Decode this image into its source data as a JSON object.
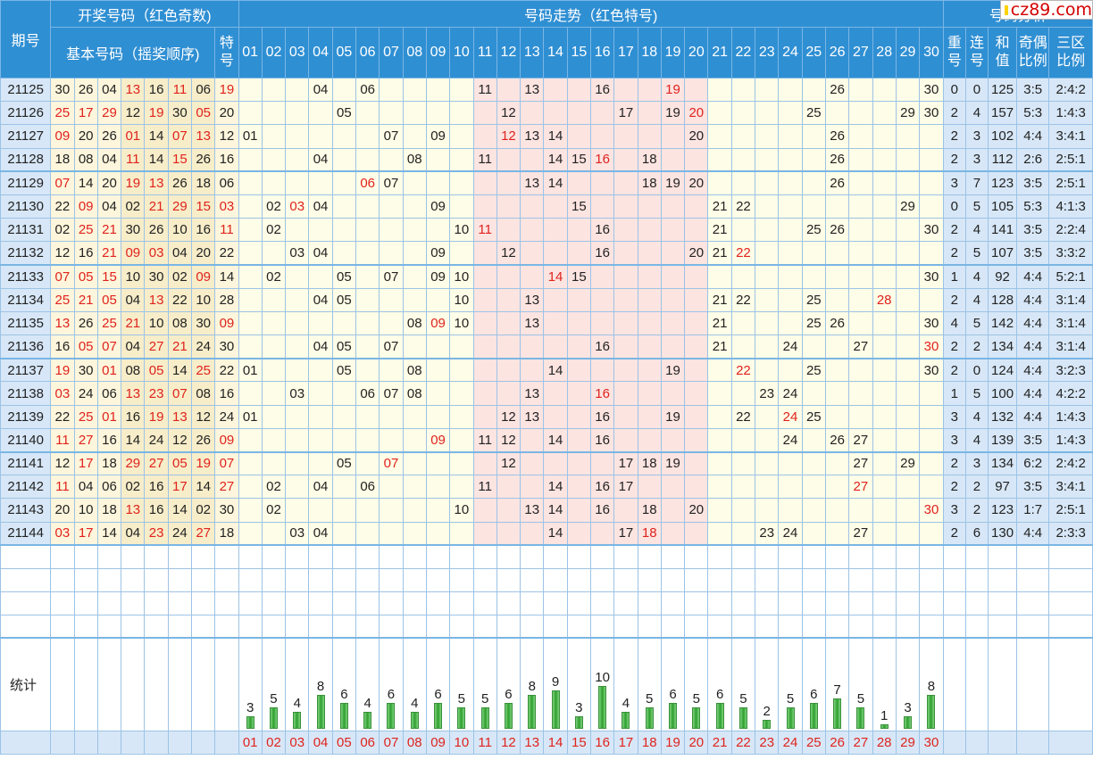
{
  "logo_text": "cz89.com",
  "header": {
    "issue": "期号",
    "draw": "开奖号码（红色奇数)",
    "base": "基本号码（摇奖顺序)",
    "special": "特号",
    "trend": "号码走势（红色特号)",
    "analysis": "号码分析",
    "repeat": "重号",
    "consec": "连号",
    "sum": "和值",
    "oddeven": "奇偶比例",
    "zone": "三区比例"
  },
  "stat_label": "统计",
  "chart_data": {
    "type": "bar",
    "title": "",
    "categories": [
      "01",
      "02",
      "03",
      "04",
      "05",
      "06",
      "07",
      "08",
      "09",
      "10",
      "11",
      "12",
      "13",
      "14",
      "15",
      "16",
      "17",
      "18",
      "19",
      "20",
      "21",
      "22",
      "23",
      "24",
      "25",
      "26",
      "27",
      "28",
      "29",
      "30"
    ],
    "values": [
      3,
      5,
      4,
      8,
      6,
      4,
      6,
      4,
      6,
      5,
      5,
      6,
      8,
      9,
      3,
      10,
      4,
      5,
      6,
      5,
      6,
      5,
      2,
      5,
      6,
      7,
      5,
      1,
      3,
      8
    ]
  },
  "rows": [
    {
      "issue": "21125",
      "base": [
        "30",
        "26",
        "04",
        "13",
        "16",
        "11",
        "06"
      ],
      "sp": "19",
      "trend": [
        "04",
        "06",
        "11",
        "13",
        "16",
        "19",
        "26",
        "30"
      ],
      "rep": "0",
      "con": "0",
      "sum": "125",
      "oe": "3:5",
      "zone": "2:4:2"
    },
    {
      "issue": "21126",
      "base": [
        "25",
        "17",
        "29",
        "12",
        "19",
        "30",
        "05"
      ],
      "sp": "20",
      "trend": [
        "05",
        "12",
        "17",
        "19",
        "20",
        "25",
        "29",
        "30"
      ],
      "rep": "2",
      "con": "4",
      "sum": "157",
      "oe": "5:3",
      "zone": "1:4:3"
    },
    {
      "issue": "21127",
      "base": [
        "09",
        "20",
        "26",
        "01",
        "14",
        "07",
        "13"
      ],
      "sp": "12",
      "trend": [
        "01",
        "07",
        "09",
        "12",
        "13",
        "14",
        "20",
        "26"
      ],
      "rep": "2",
      "con": "3",
      "sum": "102",
      "oe": "4:4",
      "zone": "3:4:1"
    },
    {
      "issue": "21128",
      "base": [
        "18",
        "08",
        "04",
        "11",
        "14",
        "15",
        "26"
      ],
      "sp": "16",
      "trend": [
        "04",
        "08",
        "11",
        "14",
        "15",
        "16",
        "18",
        "26"
      ],
      "rep": "2",
      "con": "3",
      "sum": "112",
      "oe": "2:6",
      "zone": "2:5:1"
    },
    {
      "issue": "21129",
      "base": [
        "07",
        "14",
        "20",
        "19",
        "13",
        "26",
        "18"
      ],
      "sp": "06",
      "trend": [
        "06",
        "07",
        "13",
        "14",
        "18",
        "19",
        "20",
        "26"
      ],
      "rep": "3",
      "con": "7",
      "sum": "123",
      "oe": "3:5",
      "zone": "2:5:1"
    },
    {
      "issue": "21130",
      "base": [
        "22",
        "09",
        "04",
        "02",
        "21",
        "29",
        "15"
      ],
      "sp": "03",
      "trend": [
        "02",
        "03",
        "04",
        "09",
        "15",
        "21",
        "22",
        "29"
      ],
      "rep": "0",
      "con": "5",
      "sum": "105",
      "oe": "5:3",
      "zone": "4:1:3"
    },
    {
      "issue": "21131",
      "base": [
        "02",
        "25",
        "21",
        "30",
        "26",
        "10",
        "16"
      ],
      "sp": "11",
      "trend": [
        "02",
        "10",
        "11",
        "16",
        "21",
        "25",
        "26",
        "30"
      ],
      "rep": "2",
      "con": "4",
      "sum": "141",
      "oe": "3:5",
      "zone": "2:2:4"
    },
    {
      "issue": "21132",
      "base": [
        "12",
        "16",
        "21",
        "09",
        "03",
        "04",
        "20"
      ],
      "sp": "22",
      "trend": [
        "03",
        "04",
        "09",
        "12",
        "16",
        "20",
        "21",
        "22"
      ],
      "rep": "2",
      "con": "5",
      "sum": "107",
      "oe": "3:5",
      "zone": "3:3:2"
    },
    {
      "issue": "21133",
      "base": [
        "07",
        "05",
        "15",
        "10",
        "30",
        "02",
        "09"
      ],
      "sp": "14",
      "trend": [
        "02",
        "05",
        "07",
        "09",
        "10",
        "14",
        "15",
        "30"
      ],
      "rep": "1",
      "con": "4",
      "sum": "92",
      "oe": "4:4",
      "zone": "5:2:1"
    },
    {
      "issue": "21134",
      "base": [
        "25",
        "21",
        "05",
        "04",
        "13",
        "22",
        "10"
      ],
      "sp": "28",
      "trend": [
        "04",
        "05",
        "10",
        "13",
        "21",
        "22",
        "25",
        "28"
      ],
      "rep": "2",
      "con": "4",
      "sum": "128",
      "oe": "4:4",
      "zone": "3:1:4"
    },
    {
      "issue": "21135",
      "base": [
        "13",
        "26",
        "25",
        "21",
        "10",
        "08",
        "30"
      ],
      "sp": "09",
      "trend": [
        "08",
        "09",
        "10",
        "13",
        "21",
        "25",
        "26",
        "30"
      ],
      "rep": "4",
      "con": "5",
      "sum": "142",
      "oe": "4:4",
      "zone": "3:1:4"
    },
    {
      "issue": "21136",
      "base": [
        "16",
        "05",
        "07",
        "04",
        "27",
        "21",
        "24"
      ],
      "sp": "30",
      "trend": [
        "04",
        "05",
        "07",
        "16",
        "21",
        "24",
        "27",
        "30"
      ],
      "rep": "2",
      "con": "2",
      "sum": "134",
      "oe": "4:4",
      "zone": "3:1:4"
    },
    {
      "issue": "21137",
      "base": [
        "19",
        "30",
        "01",
        "08",
        "05",
        "14",
        "25"
      ],
      "sp": "22",
      "trend": [
        "01",
        "05",
        "08",
        "14",
        "19",
        "22",
        "25",
        "30"
      ],
      "rep": "2",
      "con": "0",
      "sum": "124",
      "oe": "4:4",
      "zone": "3:2:3"
    },
    {
      "issue": "21138",
      "base": [
        "03",
        "24",
        "06",
        "13",
        "23",
        "07",
        "08"
      ],
      "sp": "16",
      "trend": [
        "03",
        "06",
        "07",
        "08",
        "13",
        "16",
        "23",
        "24"
      ],
      "rep": "1",
      "con": "5",
      "sum": "100",
      "oe": "4:4",
      "zone": "4:2:2"
    },
    {
      "issue": "21139",
      "base": [
        "22",
        "25",
        "01",
        "16",
        "19",
        "13",
        "12"
      ],
      "sp": "24",
      "trend": [
        "01",
        "12",
        "13",
        "16",
        "19",
        "22",
        "24",
        "25"
      ],
      "rep": "3",
      "con": "4",
      "sum": "132",
      "oe": "4:4",
      "zone": "1:4:3"
    },
    {
      "issue": "21140",
      "base": [
        "11",
        "27",
        "16",
        "14",
        "24",
        "12",
        "26"
      ],
      "sp": "09",
      "trend": [
        "09",
        "11",
        "12",
        "14",
        "16",
        "24",
        "26",
        "27"
      ],
      "rep": "3",
      "con": "4",
      "sum": "139",
      "oe": "3:5",
      "zone": "1:4:3"
    },
    {
      "issue": "21141",
      "base": [
        "12",
        "17",
        "18",
        "29",
        "27",
        "05",
        "19"
      ],
      "sp": "07",
      "trend": [
        "05",
        "07",
        "12",
        "17",
        "18",
        "19",
        "27",
        "29"
      ],
      "rep": "2",
      "con": "3",
      "sum": "134",
      "oe": "6:2",
      "zone": "2:4:2"
    },
    {
      "issue": "21142",
      "base": [
        "11",
        "04",
        "06",
        "02",
        "16",
        "17",
        "14"
      ],
      "sp": "27",
      "trend": [
        "02",
        "04",
        "06",
        "11",
        "14",
        "16",
        "17",
        "27"
      ],
      "rep": "2",
      "con": "2",
      "sum": "97",
      "oe": "3:5",
      "zone": "3:4:1"
    },
    {
      "issue": "21143",
      "base": [
        "20",
        "10",
        "18",
        "13",
        "16",
        "14",
        "02"
      ],
      "sp": "30",
      "trend": [
        "02",
        "10",
        "13",
        "14",
        "16",
        "18",
        "20",
        "30"
      ],
      "rep": "3",
      "con": "2",
      "sum": "123",
      "oe": "1:7",
      "zone": "2:5:1"
    },
    {
      "issue": "21144",
      "base": [
        "03",
        "17",
        "14",
        "04",
        "23",
        "24",
        "27"
      ],
      "sp": "18",
      "trend": [
        "03",
        "04",
        "14",
        "17",
        "18",
        "23",
        "24",
        "27"
      ],
      "rep": "2",
      "con": "6",
      "sum": "130",
      "oe": "4:4",
      "zone": "2:3:3"
    }
  ]
}
